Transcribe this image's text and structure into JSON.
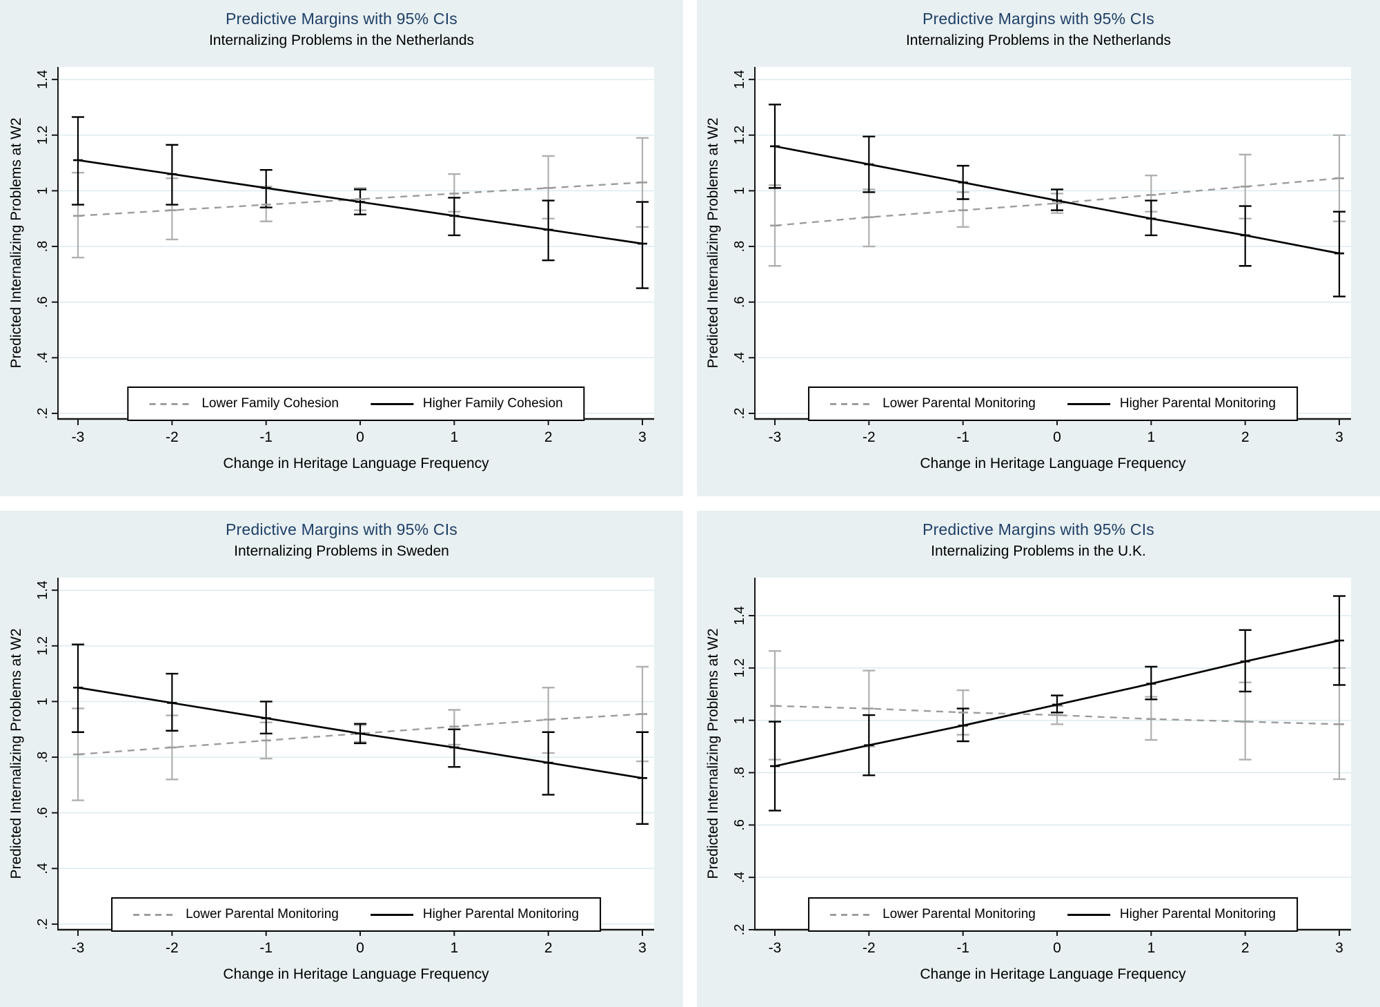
{
  "colors": {
    "background": "#e9f0f2",
    "plot_background": "#ffffff",
    "gridline": "#d8e9ee",
    "axis": "#161616",
    "title": "#1e3f66",
    "text": "#000000",
    "dashed_series": "#9c9c9c",
    "ci_gray": "#b0b0b0",
    "solid_series": "#000000"
  },
  "panels": [
    {
      "title": "Predictive Margins with 95% CIs",
      "subtitle": "Internalizing Problems in the Netherlands",
      "ylabel": "Predicted Internalizing Problems at W2",
      "xlabel": "Change in Heritage Language Frequency",
      "legend": [
        "Lower Family Cohesion",
        "Higher Family Cohesion"
      ]
    },
    {
      "title": "Predictive Margins with 95% CIs",
      "subtitle": "Internalizing Problems in the Netherlands",
      "ylabel": "Predicted Internalizing Problems at W2",
      "xlabel": "Change in Heritage Language Frequency",
      "legend": [
        "Lower Parental Monitoring",
        "Higher Parental Monitoring"
      ]
    },
    {
      "title": "Predictive Margins with 95% CIs",
      "subtitle": "Internalizing Problems in Sweden",
      "ylabel": "Predicted Internalizing Problems at W2",
      "xlabel": "Change in Heritage Language Frequency",
      "legend": [
        "Lower Parental Monitoring",
        "Higher Parental Monitoring"
      ]
    },
    {
      "title": "Predictive Margins with 95% CIs",
      "subtitle": "Internalizing Problems in the U.K.",
      "ylabel": "Predicted Internalizing Problems at W2",
      "xlabel": "Change in Heritage Language Frequency",
      "legend": [
        "Lower Parental Monitoring",
        "Higher Parental Monitoring"
      ]
    }
  ],
  "chart_data": [
    {
      "type": "line",
      "title": "Predictive Margins with 95% CIs",
      "subtitle": "Internalizing Problems in the Netherlands",
      "xlabel": "Change in Heritage Language Frequency",
      "ylabel": "Predicted Internalizing Problems at W2",
      "x": [
        -3,
        -2,
        -1,
        0,
        1,
        2,
        3
      ],
      "x_tick_labels": [
        "-3",
        "-2",
        "-1",
        "0",
        "1",
        "2",
        "3"
      ],
      "y_tick_labels": [
        ".2",
        ".4",
        ".6",
        ".8",
        "1",
        "1.2",
        "1.4"
      ],
      "y_tick_values": [
        0.2,
        0.4,
        0.6,
        0.8,
        1.0,
        1.2,
        1.4
      ],
      "ylim": [
        0.18,
        1.445
      ],
      "grid": true,
      "legend_position": "bottom",
      "series": [
        {
          "name": "Lower Family Cohesion",
          "style": "dashed",
          "values": [
            0.91,
            0.93,
            0.95,
            0.97,
            0.99,
            1.01,
            1.03
          ],
          "ci_low": [
            0.76,
            0.825,
            0.89,
            0.93,
            0.925,
            0.9,
            0.87
          ],
          "ci_high": [
            1.065,
            1.045,
            1.015,
            1.01,
            1.06,
            1.125,
            1.19
          ]
        },
        {
          "name": "Higher Family Cohesion",
          "style": "solid",
          "values": [
            1.11,
            1.06,
            1.01,
            0.96,
            0.91,
            0.86,
            0.81
          ],
          "ci_low": [
            0.95,
            0.95,
            0.94,
            0.915,
            0.84,
            0.75,
            0.65
          ],
          "ci_high": [
            1.265,
            1.165,
            1.075,
            1.005,
            0.975,
            0.965,
            0.96
          ]
        }
      ]
    },
    {
      "type": "line",
      "title": "Predictive Margins with 95% CIs",
      "subtitle": "Internalizing Problems in the Netherlands",
      "xlabel": "Change in Heritage Language Frequency",
      "ylabel": "Predicted Internalizing Problems at W2",
      "x": [
        -3,
        -2,
        -1,
        0,
        1,
        2,
        3
      ],
      "x_tick_labels": [
        "-3",
        "-2",
        "-1",
        "0",
        "1",
        "2",
        "3"
      ],
      "y_tick_labels": [
        ".2",
        ".4",
        ".6",
        ".8",
        "1",
        "1.2",
        "1.4"
      ],
      "y_tick_values": [
        0.2,
        0.4,
        0.6,
        0.8,
        1.0,
        1.2,
        1.4
      ],
      "ylim": [
        0.18,
        1.445
      ],
      "grid": true,
      "legend_position": "bottom",
      "series": [
        {
          "name": "Lower Parental Monitoring",
          "style": "dashed",
          "values": [
            0.875,
            0.905,
            0.93,
            0.955,
            0.985,
            1.015,
            1.045
          ],
          "ci_low": [
            0.73,
            0.8,
            0.87,
            0.92,
            0.925,
            0.9,
            0.89
          ],
          "ci_high": [
            1.02,
            1.005,
            0.995,
            0.99,
            1.055,
            1.13,
            1.2
          ]
        },
        {
          "name": "Higher Parental Monitoring",
          "style": "solid",
          "values": [
            1.16,
            1.095,
            1.03,
            0.965,
            0.9,
            0.84,
            0.775
          ],
          "ci_low": [
            1.01,
            0.995,
            0.97,
            0.93,
            0.84,
            0.73,
            0.62
          ],
          "ci_high": [
            1.31,
            1.195,
            1.09,
            1.005,
            0.965,
            0.945,
            0.925
          ]
        }
      ]
    },
    {
      "type": "line",
      "title": "Predictive Margins with 95% CIs",
      "subtitle": "Internalizing Problems in Sweden",
      "xlabel": "Change in Heritage Language Frequency",
      "ylabel": "Predicted Internalizing Problems at W2",
      "x": [
        -3,
        -2,
        -1,
        0,
        1,
        2,
        3
      ],
      "x_tick_labels": [
        "-3",
        "-2",
        "-1",
        "0",
        "1",
        "2",
        "3"
      ],
      "y_tick_labels": [
        ".2",
        ".4",
        ".6",
        ".8",
        "1",
        "1.2",
        "1.4"
      ],
      "y_tick_values": [
        0.2,
        0.4,
        0.6,
        0.8,
        1.0,
        1.2,
        1.4
      ],
      "ylim": [
        0.18,
        1.445
      ],
      "grid": true,
      "legend_position": "bottom",
      "series": [
        {
          "name": "Lower Parental Monitoring",
          "style": "dashed",
          "values": [
            0.81,
            0.835,
            0.86,
            0.885,
            0.91,
            0.935,
            0.955
          ],
          "ci_low": [
            0.645,
            0.72,
            0.795,
            0.855,
            0.845,
            0.815,
            0.785
          ],
          "ci_high": [
            0.975,
            0.95,
            0.925,
            0.915,
            0.97,
            1.05,
            1.125
          ]
        },
        {
          "name": "Higher Parental Monitoring",
          "style": "solid",
          "values": [
            1.05,
            0.995,
            0.94,
            0.885,
            0.835,
            0.78,
            0.725
          ],
          "ci_low": [
            0.89,
            0.895,
            0.885,
            0.85,
            0.765,
            0.665,
            0.56
          ],
          "ci_high": [
            1.205,
            1.1,
            1.0,
            0.92,
            0.9,
            0.89,
            0.89
          ]
        }
      ]
    },
    {
      "type": "line",
      "title": "Predictive Margins with 95% CIs",
      "subtitle": "Internalizing Problems in the U.K.",
      "xlabel": "Change in Heritage Language Frequency",
      "ylabel": "Predicted Internalizing Problems at W2",
      "x": [
        -3,
        -2,
        -1,
        0,
        1,
        2,
        3
      ],
      "x_tick_labels": [
        "-3",
        "-2",
        "-1",
        "0",
        "1",
        "2",
        "3"
      ],
      "y_tick_labels": [
        ".2",
        ".4",
        ".6",
        ".8",
        "1",
        "1.2",
        "1.4"
      ],
      "y_tick_values": [
        0.2,
        0.4,
        0.6,
        0.8,
        1.0,
        1.2,
        1.4
      ],
      "ylim": [
        0.2,
        1.545
      ],
      "grid": true,
      "legend_position": "bottom",
      "series": [
        {
          "name": "Lower Parental Monitoring",
          "style": "dashed",
          "values": [
            1.055,
            1.045,
            1.03,
            1.02,
            1.005,
            0.995,
            0.985
          ],
          "ci_low": [
            0.85,
            0.9,
            0.945,
            0.985,
            0.925,
            0.85,
            0.775
          ],
          "ci_high": [
            1.265,
            1.19,
            1.115,
            1.055,
            1.09,
            1.145,
            1.2
          ]
        },
        {
          "name": "Higher Parental Monitoring",
          "style": "solid",
          "values": [
            0.825,
            0.905,
            0.98,
            1.06,
            1.14,
            1.225,
            1.305
          ],
          "ci_low": [
            0.655,
            0.79,
            0.92,
            1.03,
            1.08,
            1.11,
            1.135
          ],
          "ci_high": [
            0.995,
            1.02,
            1.045,
            1.095,
            1.205,
            1.345,
            1.475
          ]
        }
      ]
    }
  ]
}
